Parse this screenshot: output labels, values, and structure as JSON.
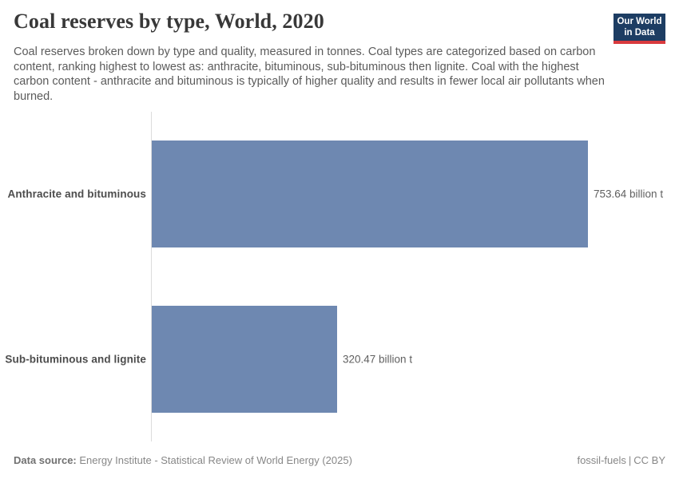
{
  "header": {
    "title": "Coal reserves by type, World, 2020",
    "subtitle": "Coal reserves broken down by type and quality, measured in tonnes. Coal types are categorized based on carbon content, ranking highest to lowest as: anthracite, bituminous, sub-bituminous then lignite. Coal with the highest carbon content - anthracite and bituminous is typically of higher quality and results in fewer local air pollutants when burned.",
    "logo": {
      "line1": "Our World",
      "line2": "in Data",
      "bg_color": "#1d3d63",
      "accent_color": "#d93a3e"
    }
  },
  "chart_data": {
    "type": "bar",
    "orientation": "horizontal",
    "title": "Coal reserves by type, World, 2020",
    "unit": "billion t",
    "categories": [
      "Anthracite and bituminous",
      "Sub-bituminous and lignite"
    ],
    "values": [
      753.64,
      320.47
    ],
    "value_labels": [
      "753.64 billion t",
      "320.47 billion t"
    ],
    "xlim": [
      0,
      753.64
    ],
    "grid": false,
    "legend": "none",
    "bar_color": "#6e88b1"
  },
  "footer": {
    "source_label": "Data source:",
    "source_text": "Energy Institute - Statistical Review of World Energy (2025)",
    "credit_left": "fossil-fuels",
    "credit_separator": "|",
    "credit_right": "CC BY"
  }
}
